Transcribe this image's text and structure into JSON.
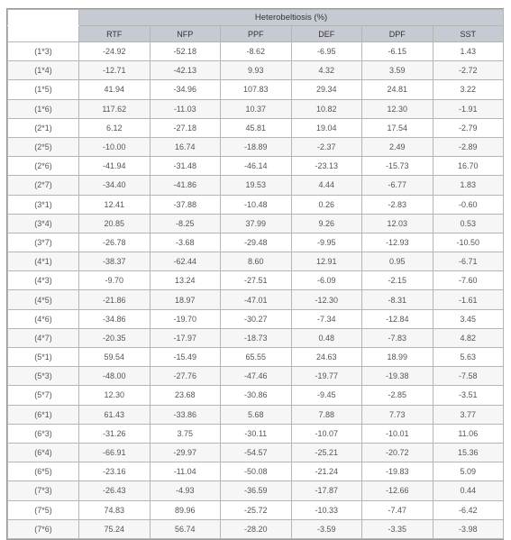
{
  "table": {
    "title": "Heterobeltiosis (%)",
    "columns": [
      "RTF",
      "NFP",
      "PPF",
      "DEF",
      "DPF",
      "SST"
    ],
    "rows": [
      {
        "label": "(1*3)",
        "values": [
          "-24.92",
          "-52.18",
          "-8.62",
          "-6.95",
          "-6.15",
          "1.43"
        ]
      },
      {
        "label": "(1*4)",
        "values": [
          "-12.71",
          "-42.13",
          "9.93",
          "4.32",
          "3.59",
          "-2.72"
        ]
      },
      {
        "label": "(1*5)",
        "values": [
          "41.94",
          "-34.96",
          "107.83",
          "29.34",
          "24.81",
          "3.22"
        ]
      },
      {
        "label": "(1*6)",
        "values": [
          "117.62",
          "-11.03",
          "10.37",
          "10.82",
          "12.30",
          "-1.91"
        ]
      },
      {
        "label": "(2*1)",
        "values": [
          "6.12",
          "-27.18",
          "45.81",
          "19.04",
          "17.54",
          "-2.79"
        ]
      },
      {
        "label": "(2*5)",
        "values": [
          "-10.00",
          "16.74",
          "-18.89",
          "-2.37",
          "2.49",
          "-2.89"
        ]
      },
      {
        "label": "(2*6)",
        "values": [
          "-41.94",
          "-31.48",
          "-46.14",
          "-23.13",
          "-15.73",
          "16.70"
        ]
      },
      {
        "label": "(2*7)",
        "values": [
          "-34.40",
          "-41.86",
          "19.53",
          "4.44",
          "-6.77",
          "1.83"
        ]
      },
      {
        "label": "(3*1)",
        "values": [
          "12.41",
          "-37.88",
          "-10.48",
          "0.26",
          "-2.83",
          "-0.60"
        ]
      },
      {
        "label": "(3*4)",
        "values": [
          "20.85",
          "-8.25",
          "37.99",
          "9.26",
          "12.03",
          "0.53"
        ]
      },
      {
        "label": "(3*7)",
        "values": [
          "-26.78",
          "-3.68",
          "-29.48",
          "-9.95",
          "-12.93",
          "-10.50"
        ]
      },
      {
        "label": "(4*1)",
        "values": [
          "-38.37",
          "-62.44",
          "8.60",
          "12.91",
          "0.95",
          "-6.71"
        ]
      },
      {
        "label": "(4*3)",
        "values": [
          "-9.70",
          "13.24",
          "-27.51",
          "-6.09",
          "-2.15",
          "-7.60"
        ]
      },
      {
        "label": "(4*5)",
        "values": [
          "-21.86",
          "18.97",
          "-47.01",
          "-12.30",
          "-8.31",
          "-1.61"
        ]
      },
      {
        "label": "(4*6)",
        "values": [
          "-34.86",
          "-19.70",
          "-30.27",
          "-7.34",
          "-12.84",
          "3.45"
        ]
      },
      {
        "label": "(4*7)",
        "values": [
          "-20.35",
          "-17.97",
          "-18.73",
          "0.48",
          "-7.83",
          "4.82"
        ]
      },
      {
        "label": "(5*1)",
        "values": [
          "59.54",
          "-15.49",
          "65.55",
          "24.63",
          "18.99",
          "5.63"
        ]
      },
      {
        "label": "(5*3)",
        "values": [
          "-48.00",
          "-27.76",
          "-47.46",
          "-19.77",
          "-19.38",
          "-7.58"
        ]
      },
      {
        "label": "(5*7)",
        "values": [
          "12.30",
          "23.68",
          "-30.86",
          "-9.45",
          "-2.85",
          "-3.51"
        ]
      },
      {
        "label": "(6*1)",
        "values": [
          "61.43",
          "-33.86",
          "5.68",
          "7.88",
          "7.73",
          "3.77"
        ]
      },
      {
        "label": "(6*3)",
        "values": [
          "-31.26",
          "3.75",
          "-30.11",
          "-10.07",
          "-10.01",
          "11.06"
        ]
      },
      {
        "label": "(6*4)",
        "values": [
          "-66.91",
          "-29.97",
          "-54.57",
          "-25.21",
          "-20.72",
          "15.36"
        ]
      },
      {
        "label": "(6*5)",
        "values": [
          "-23.16",
          "-11.04",
          "-50.08",
          "-21.24",
          "-19.83",
          "5.09"
        ]
      },
      {
        "label": "(7*3)",
        "values": [
          "-26.43",
          "-4.93",
          "-36.59",
          "-17.87",
          "-12.66",
          "0.44"
        ]
      },
      {
        "label": "(7*5)",
        "values": [
          "74.83",
          "89.96",
          "-25.72",
          "-10.33",
          "-7.47",
          "-6.42"
        ]
      },
      {
        "label": "(7*6)",
        "values": [
          "75.24",
          "56.74",
          "-28.20",
          "-3.59",
          "-3.35",
          "-3.98"
        ]
      }
    ]
  }
}
